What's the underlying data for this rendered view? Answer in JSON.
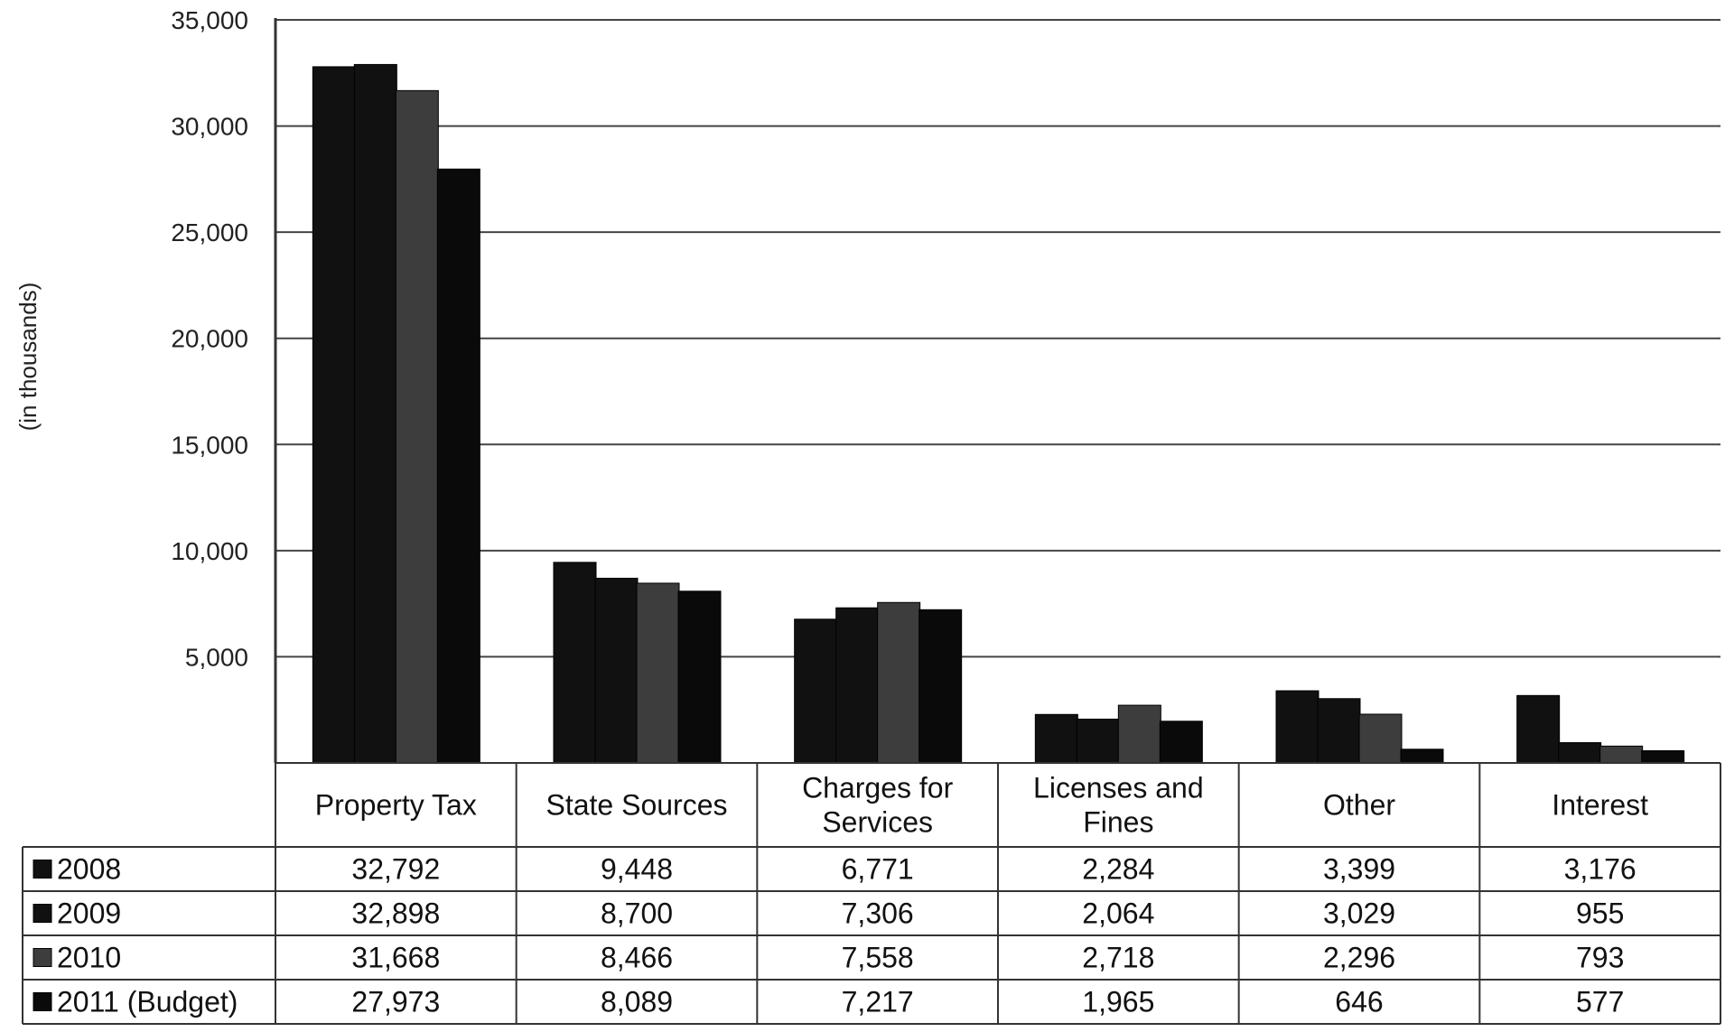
{
  "chart_data": {
    "type": "bar",
    "title": "",
    "xlabel": "",
    "ylabel": "(in thousands)",
    "ylim": [
      0,
      35000
    ],
    "yticks": [
      5000,
      10000,
      15000,
      20000,
      25000,
      30000,
      35000
    ],
    "ytick_labels": [
      "5,000",
      "10,000",
      "15,000",
      "20,000",
      "25,000",
      "30,000",
      "35,000"
    ],
    "grid": true,
    "legend_position": "table-left",
    "categories": [
      "Property Tax",
      "State Sources",
      "Charges for Services",
      "Licenses and Fines",
      "Other",
      "Interest"
    ],
    "series": [
      {
        "name": "2008",
        "color": "#111111",
        "values": [
          32792,
          9448,
          6771,
          2284,
          3399,
          3176
        ],
        "labels": [
          "32,792",
          "9,448",
          "6,771",
          "2,284",
          "3,399",
          "3,176"
        ]
      },
      {
        "name": "2009",
        "color": "#111111",
        "values": [
          32898,
          8700,
          7306,
          2064,
          3029,
          955
        ],
        "labels": [
          "32,898",
          "8,700",
          "7,306",
          "2,064",
          "3,029",
          "955"
        ]
      },
      {
        "name": "2010",
        "color": "#3d3d3d",
        "values": [
          31668,
          8466,
          7558,
          2718,
          2296,
          793
        ],
        "labels": [
          "31,668",
          "8,466",
          "7,558",
          "2,718",
          "2,296",
          "793"
        ]
      },
      {
        "name": "2011 (Budget)",
        "color": "#0a0a0a",
        "values": [
          27973,
          8089,
          7217,
          1965,
          646,
          577
        ],
        "labels": [
          "27,973",
          "8,089",
          "7,217",
          "1,965",
          "646",
          "577"
        ]
      }
    ]
  }
}
